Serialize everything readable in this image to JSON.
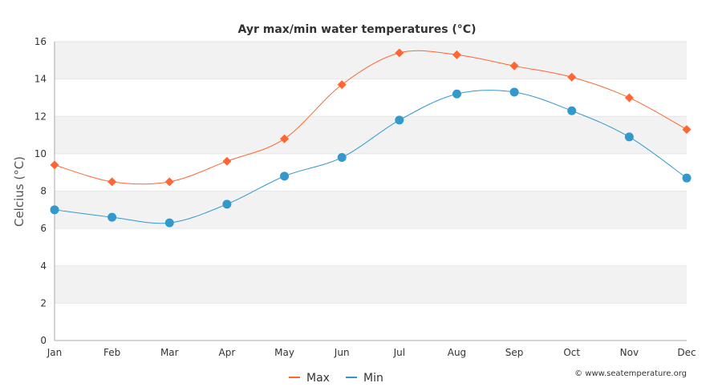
{
  "chart_data": {
    "type": "line",
    "title": "Ayr max/min water temperatures (°C)",
    "xlabel": "",
    "ylabel": "Celcius (°C)",
    "ylim": [
      0,
      16
    ],
    "yticks": [
      0,
      2,
      4,
      6,
      8,
      10,
      12,
      14,
      16
    ],
    "categories": [
      "Jan",
      "Feb",
      "Mar",
      "Apr",
      "May",
      "Jun",
      "Jul",
      "Aug",
      "Sep",
      "Oct",
      "Nov",
      "Dec"
    ],
    "series": [
      {
        "name": "Max",
        "color": "#ff6633",
        "marker": "diamond",
        "values": [
          9.4,
          8.5,
          8.5,
          9.6,
          10.8,
          13.7,
          15.4,
          15.3,
          14.7,
          14.1,
          13.0,
          11.3
        ]
      },
      {
        "name": "Min",
        "color": "#3399cc",
        "marker": "circle",
        "values": [
          7.0,
          6.6,
          6.3,
          7.3,
          8.8,
          9.8,
          11.8,
          13.2,
          13.3,
          12.3,
          10.9,
          8.7
        ]
      }
    ],
    "grid": true,
    "legend_position": "bottom-center",
    "band_color": "#f2f2f2",
    "credit": "© www.seatemperature.org"
  }
}
